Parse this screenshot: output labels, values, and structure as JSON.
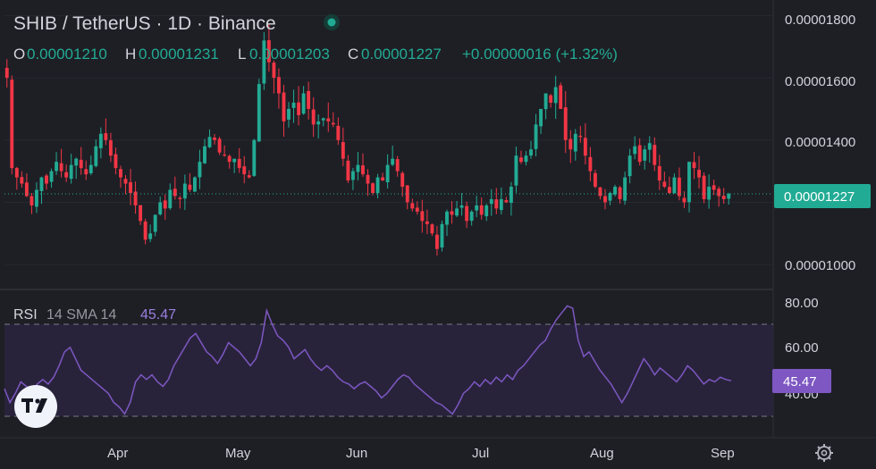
{
  "header": {
    "symbol_line": "SHIB / TetherUS · 1D · Binance",
    "ohlc": [
      {
        "key": "O",
        "value": "0.00001210"
      },
      {
        "key": "H",
        "value": "0.00001231"
      },
      {
        "key": "L",
        "value": "0.00001203"
      },
      {
        "key": "C",
        "value": "0.00001227"
      }
    ],
    "change": "+0.00000016 (+1.32%)"
  },
  "price_axis": {
    "ticks": [
      "0.00001800",
      "0.00001600",
      "0.00001400",
      "0.00001000"
    ],
    "current_label": "0.00001227"
  },
  "rsi": {
    "legend_name": "RSI",
    "legend_params": "14 SMA 14",
    "value_text": "45.47",
    "ticks": [
      "80.00",
      "60.00",
      "40.00"
    ]
  },
  "time_axis": [
    "Apr",
    "May",
    "Jun",
    "Jul",
    "Aug",
    "Sep"
  ],
  "colors": {
    "up": "#22ab94",
    "down": "#f23645",
    "rsi_line": "#7e57c2",
    "rsi_band": "#2a2540",
    "bg": "#1e1f25",
    "badge": "#22ab94",
    "rsi_badge": "#7e57c2"
  },
  "icons": [
    "tradingview-logo-icon",
    "gear-icon",
    "status-dot-icon"
  ],
  "chart_data": [
    {
      "type": "candlestick",
      "title": "SHIB / TetherUS · 1D · Binance",
      "ylim": [
        9.2e-06,
        1.85e-05
      ],
      "x_labels": [
        "Apr",
        "May",
        "Jun",
        "Jul",
        "Aug",
        "Sep"
      ],
      "closes": [
        1.6e-05,
        1.31e-05,
        1.28e-05,
        1.26e-05,
        1.22e-05,
        1.19e-05,
        1.24e-05,
        1.28e-05,
        1.26e-05,
        1.3e-05,
        1.33e-05,
        1.3e-05,
        1.28e-05,
        1.32e-05,
        1.34e-05,
        1.31e-05,
        1.29e-05,
        1.32e-05,
        1.38e-05,
        1.42e-05,
        1.4e-05,
        1.35e-05,
        1.31e-05,
        1.28e-05,
        1.26e-05,
        1.23e-05,
        1.19e-05,
        1.14e-05,
        1.08e-05,
        1.1e-05,
        1.16e-05,
        1.2e-05,
        1.18e-05,
        1.24e-05,
        1.22e-05,
        1.21e-05,
        1.26e-05,
        1.24e-05,
        1.28e-05,
        1.33e-05,
        1.38e-05,
        1.41e-05,
        1.4e-05,
        1.36e-05,
        1.35e-05,
        1.33e-05,
        1.34e-05,
        1.31e-05,
        1.29e-05,
        1.28e-05,
        1.4e-05,
        1.58e-05,
        1.72e-05,
        1.65e-05,
        1.6e-05,
        1.55e-05,
        1.46e-05,
        1.5e-05,
        1.52e-05,
        1.48e-05,
        1.55e-05,
        1.5e-05,
        1.45e-05,
        1.46e-05,
        1.47e-05,
        1.46e-05,
        1.45e-05,
        1.4e-05,
        1.34e-05,
        1.27e-05,
        1.3e-05,
        1.32e-05,
        1.29e-05,
        1.26e-05,
        1.23e-05,
        1.28e-05,
        1.27e-05,
        1.32e-05,
        1.34e-05,
        1.3e-05,
        1.25e-05,
        1.2e-05,
        1.18e-05,
        1.17e-05,
        1.14e-05,
        1.13e-05,
        1.1e-05,
        1.05e-05,
        1.13e-05,
        1.17e-05,
        1.16e-05,
        1.18e-05,
        1.19e-05,
        1.14e-05,
        1.17e-05,
        1.19e-05,
        1.16e-05,
        1.19e-05,
        1.21e-05,
        1.18e-05,
        1.21e-05,
        1.2e-05,
        1.25e-05,
        1.35e-05,
        1.33e-05,
        1.35e-05,
        1.37e-05,
        1.45e-05,
        1.5e-05,
        1.55e-05,
        1.52e-05,
        1.57e-05,
        1.5e-05,
        1.4e-05,
        1.37e-05,
        1.42e-05,
        1.41e-05,
        1.35e-05,
        1.3e-05,
        1.25e-05,
        1.22e-05,
        1.2e-05,
        1.23e-05,
        1.25e-05,
        1.21e-05,
        1.28e-05,
        1.35e-05,
        1.38e-05,
        1.33e-05,
        1.37e-05,
        1.39e-05,
        1.32e-05,
        1.27e-05,
        1.25e-05,
        1.23e-05,
        1.28e-05,
        1.22e-05,
        1.2e-05,
        1.33e-05,
        1.31e-05,
        1.28e-05,
        1.21e-05,
        1.25e-05,
        1.24e-05,
        1.22e-05,
        1.21e-05,
        1.227e-05
      ],
      "current_price": 1.227e-05
    },
    {
      "type": "line",
      "title": "RSI 14 SMA 14",
      "ylim": [
        27,
        82
      ],
      "ref_lines": [
        70,
        30
      ],
      "values": [
        42,
        36,
        40,
        45,
        43,
        41,
        44,
        46,
        44,
        47,
        52,
        58,
        60,
        55,
        50,
        48,
        46,
        44,
        42,
        40,
        36,
        34,
        31,
        36,
        45,
        48,
        46,
        48,
        45,
        43,
        46,
        52,
        56,
        60,
        64,
        66,
        62,
        58,
        56,
        53,
        57,
        62,
        60,
        58,
        55,
        52,
        55,
        62,
        76,
        70,
        65,
        63,
        60,
        55,
        57,
        59,
        55,
        52,
        50,
        52,
        50,
        47,
        45,
        44,
        42,
        44,
        45,
        43,
        41,
        38,
        40,
        43,
        46,
        48,
        47,
        44,
        42,
        40,
        38,
        36,
        35,
        33,
        31,
        35,
        40,
        42,
        45,
        43,
        46,
        44,
        47,
        45,
        48,
        46,
        50,
        52,
        55,
        58,
        61,
        63,
        68,
        72,
        75,
        78,
        77,
        63,
        56,
        58,
        54,
        50,
        47,
        44,
        40,
        36,
        40,
        45,
        50,
        55,
        52,
        48,
        51,
        49,
        47,
        45,
        48,
        52,
        50,
        47,
        44,
        46,
        45,
        47,
        46,
        45.47
      ]
    }
  ]
}
